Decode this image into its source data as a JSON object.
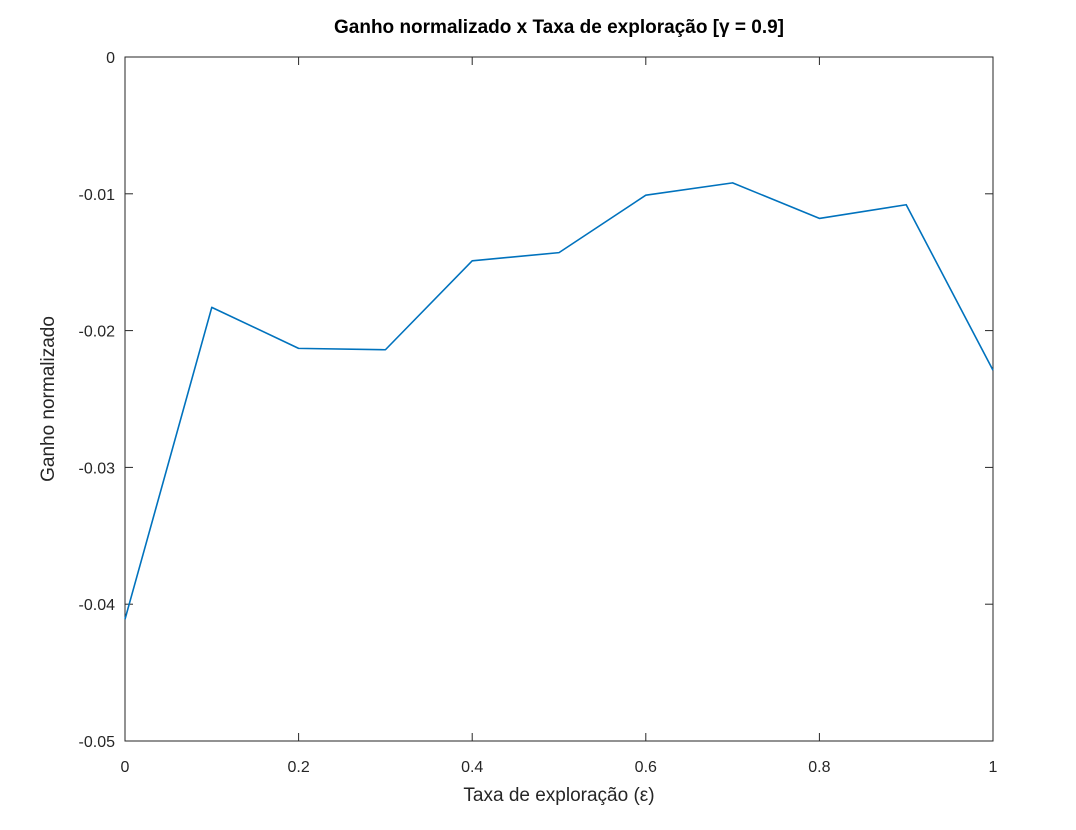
{
  "chart_data": {
    "type": "line",
    "title": "Ganho normalizado x Taxa de exploração [γ = 0.9]",
    "xlabel": "Taxa de exploração (ε)",
    "ylabel": "Ganho normalizado",
    "xlim": [
      0,
      1
    ],
    "ylim": [
      -0.05,
      0
    ],
    "xticks": [
      0,
      0.2,
      0.4,
      0.6,
      0.8,
      1
    ],
    "xtick_labels": [
      "0",
      "0.2",
      "0.4",
      "0.6",
      "0.8",
      "1"
    ],
    "yticks": [
      0,
      -0.01,
      -0.02,
      -0.03,
      -0.04,
      -0.05
    ],
    "ytick_labels": [
      "0",
      "-0.01",
      "-0.02",
      "-0.03",
      "-0.04",
      "-0.05"
    ],
    "grid": false,
    "box": true,
    "series": [
      {
        "color": "#0072bd",
        "x": [
          0,
          0.1,
          0.2,
          0.3,
          0.4,
          0.5,
          0.6,
          0.7,
          0.8,
          0.9,
          1.0
        ],
        "y": [
          -0.0411,
          -0.0183,
          -0.0213,
          -0.0214,
          -0.0149,
          -0.0143,
          -0.0101,
          -0.0092,
          -0.0118,
          -0.0108,
          -0.0229
        ]
      }
    ]
  }
}
